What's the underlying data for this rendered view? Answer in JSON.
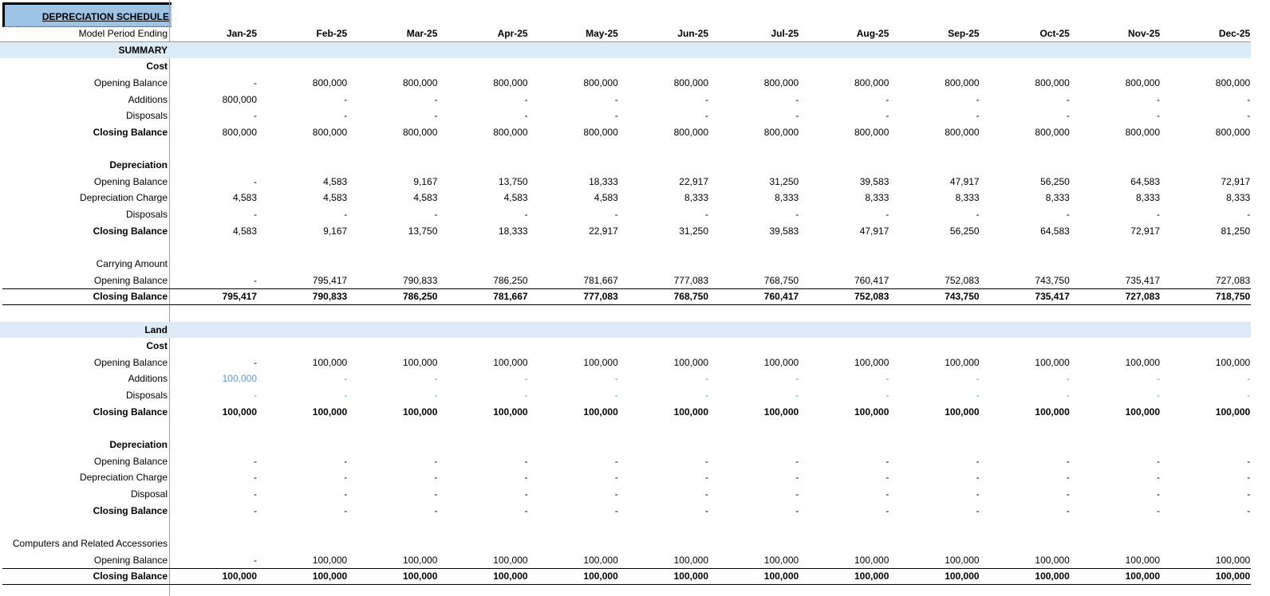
{
  "title": "DEPRECIATION SCHEDULE",
  "header": {
    "label": "Model Period Ending",
    "months": [
      "Jan-25",
      "Feb-25",
      "Mar-25",
      "Apr-25",
      "May-25",
      "Jun-25",
      "Jul-25",
      "Aug-25",
      "Sep-25",
      "Oct-25",
      "Nov-25",
      "Dec-25"
    ]
  },
  "colors": {
    "title_bg": "#9dc3e6",
    "section_bg": "#ddebf7",
    "input_blue": "#5b9bd5"
  },
  "rows": [
    {
      "label": "SUMMARY",
      "style": "section"
    },
    {
      "label": "Cost",
      "style": "bold"
    },
    {
      "label": "Opening Balance",
      "values": [
        "-",
        "800,000",
        "800,000",
        "800,000",
        "800,000",
        "800,000",
        "800,000",
        "800,000",
        "800,000",
        "800,000",
        "800,000",
        "800,000"
      ]
    },
    {
      "label": "Additions",
      "values": [
        "800,000",
        "-",
        "-",
        "-",
        "-",
        "-",
        "-",
        "-",
        "-",
        "-",
        "-",
        "-"
      ]
    },
    {
      "label": "Disposals",
      "values": [
        "-",
        "-",
        "-",
        "-",
        "-",
        "-",
        "-",
        "-",
        "-",
        "-",
        "-",
        "-"
      ]
    },
    {
      "label": "Closing Balance",
      "style": "boldlabel",
      "values": [
        "800,000",
        "800,000",
        "800,000",
        "800,000",
        "800,000",
        "800,000",
        "800,000",
        "800,000",
        "800,000",
        "800,000",
        "800,000",
        "800,000"
      ]
    },
    {
      "label": ""
    },
    {
      "label": "Depreciation",
      "style": "bold"
    },
    {
      "label": "Opening Balance",
      "values": [
        "-",
        "4,583",
        "9,167",
        "13,750",
        "18,333",
        "22,917",
        "31,250",
        "39,583",
        "47,917",
        "56,250",
        "64,583",
        "72,917"
      ]
    },
    {
      "label": "Depreciation Charge",
      "values": [
        "4,583",
        "4,583",
        "4,583",
        "4,583",
        "4,583",
        "8,333",
        "8,333",
        "8,333",
        "8,333",
        "8,333",
        "8,333",
        "8,333"
      ]
    },
    {
      "label": "Disposals",
      "values": [
        "-",
        "-",
        "-",
        "-",
        "-",
        "-",
        "-",
        "-",
        "-",
        "-",
        "-",
        "-"
      ]
    },
    {
      "label": "Closing Balance",
      "style": "boldlabel",
      "values": [
        "4,583",
        "9,167",
        "13,750",
        "18,333",
        "22,917",
        "31,250",
        "39,583",
        "47,917",
        "56,250",
        "64,583",
        "72,917",
        "81,250"
      ]
    },
    {
      "label": ""
    },
    {
      "label": "Carrying Amount"
    },
    {
      "label": "Opening Balance",
      "values": [
        "-",
        "795,417",
        "790,833",
        "786,250",
        "781,667",
        "777,083",
        "768,750",
        "760,417",
        "752,083",
        "743,750",
        "735,417",
        "727,083"
      ]
    },
    {
      "label": "Closing Balance",
      "style": "total",
      "values": [
        "795,417",
        "790,833",
        "786,250",
        "781,667",
        "777,083",
        "768,750",
        "760,417",
        "752,083",
        "743,750",
        "735,417",
        "727,083",
        "718,750"
      ]
    },
    {
      "label": ""
    },
    {
      "label": "Land",
      "style": "section"
    },
    {
      "label": "Cost",
      "style": "bold"
    },
    {
      "label": "Opening Balance",
      "values": [
        "-",
        "100,000",
        "100,000",
        "100,000",
        "100,000",
        "100,000",
        "100,000",
        "100,000",
        "100,000",
        "100,000",
        "100,000",
        "100,000"
      ]
    },
    {
      "label": "Additions",
      "style": "blue",
      "values": [
        "100,000",
        "-",
        "-",
        "-",
        "-",
        "-",
        "-",
        "-",
        "-",
        "-",
        "-",
        "-"
      ]
    },
    {
      "label": "Disposals",
      "style": "blue",
      "values": [
        "-",
        "-",
        "-",
        "-",
        "-",
        "-",
        "-",
        "-",
        "-",
        "-",
        "-",
        "-"
      ]
    },
    {
      "label": "Closing Balance",
      "style": "bold",
      "values": [
        "100,000",
        "100,000",
        "100,000",
        "100,000",
        "100,000",
        "100,000",
        "100,000",
        "100,000",
        "100,000",
        "100,000",
        "100,000",
        "100,000"
      ]
    },
    {
      "label": ""
    },
    {
      "label": "Depreciation",
      "style": "bold"
    },
    {
      "label": "Opening Balance",
      "values": [
        "-",
        "-",
        "-",
        "-",
        "-",
        "-",
        "-",
        "-",
        "-",
        "-",
        "-",
        "-"
      ]
    },
    {
      "label": "Depreciation Charge",
      "values": [
        "-",
        "-",
        "-",
        "-",
        "-",
        "-",
        "-",
        "-",
        "-",
        "-",
        "-",
        "-"
      ]
    },
    {
      "label": "Disposal",
      "values": [
        "-",
        "-",
        "-",
        "-",
        "-",
        "-",
        "-",
        "-",
        "-",
        "-",
        "-",
        "-"
      ]
    },
    {
      "label": "Closing Balance",
      "style": "boldlabel",
      "values": [
        "-",
        "-",
        "-",
        "-",
        "-",
        "-",
        "-",
        "-",
        "-",
        "-",
        "-",
        "-"
      ]
    },
    {
      "label": ""
    },
    {
      "label": "Computers and Related Accessories"
    },
    {
      "label": "Opening Balance",
      "values": [
        "-",
        "100,000",
        "100,000",
        "100,000",
        "100,000",
        "100,000",
        "100,000",
        "100,000",
        "100,000",
        "100,000",
        "100,000",
        "100,000"
      ]
    },
    {
      "label": "Closing Balance",
      "style": "total",
      "values": [
        "100,000",
        "100,000",
        "100,000",
        "100,000",
        "100,000",
        "100,000",
        "100,000",
        "100,000",
        "100,000",
        "100,000",
        "100,000",
        "100,000"
      ]
    }
  ]
}
